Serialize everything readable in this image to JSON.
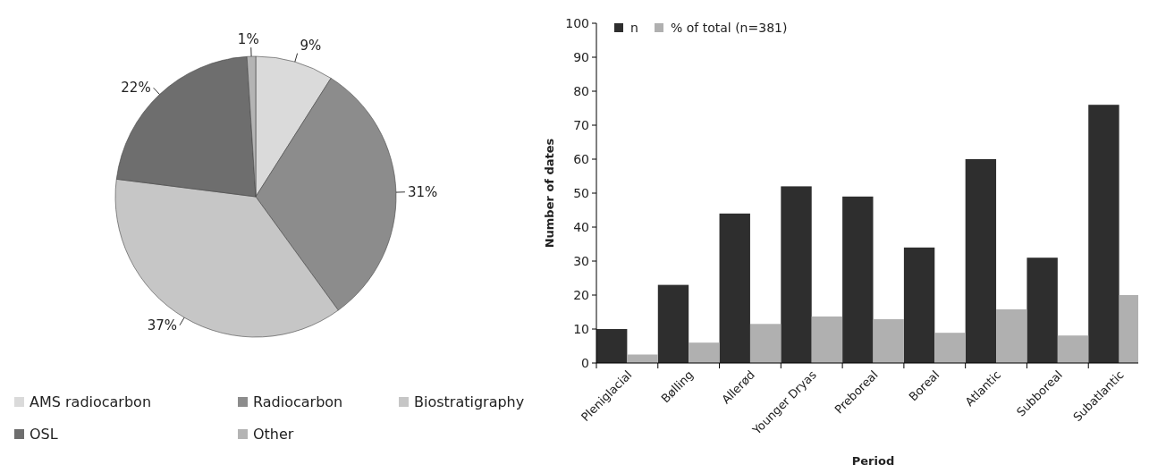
{
  "chart_data": [
    {
      "type": "pie",
      "categories": [
        "AMS radiocarbon",
        "Radiocarbon",
        "Biostratigraphy",
        "OSL",
        "Other"
      ],
      "values": [
        9,
        31,
        37,
        22,
        1
      ],
      "colors": [
        "#dadada",
        "#8c8c8c",
        "#c6c6c6",
        "#6e6e6e",
        "#b4b4b4"
      ],
      "value_labels": [
        "9%",
        "31%",
        "37%",
        "22%",
        "1%"
      ],
      "legend": "bottom"
    },
    {
      "type": "bar",
      "categories": [
        "Pleniglacial",
        "Bølling",
        "Allerød",
        "Younger Dryas",
        "Preboreal",
        "Boreal",
        "Atlantic",
        "Subboreal",
        "Subatlantic"
      ],
      "series": [
        {
          "name": "n",
          "color": "#2e2e2e",
          "values": [
            10,
            23,
            44,
            52,
            49,
            34,
            60,
            31,
            76
          ]
        },
        {
          "name": "% of total (n=381)",
          "color": "#b0b0b0",
          "values": [
            2.5,
            6,
            11.5,
            13.7,
            12.9,
            8.9,
            15.8,
            8.1,
            20
          ]
        }
      ],
      "ylim": [
        0,
        100
      ],
      "yticks": [
        0,
        10,
        20,
        30,
        40,
        50,
        60,
        70,
        80,
        90,
        100
      ],
      "xlabel": "Period",
      "ylabel": "Number of dates",
      "legend": "top left"
    }
  ]
}
